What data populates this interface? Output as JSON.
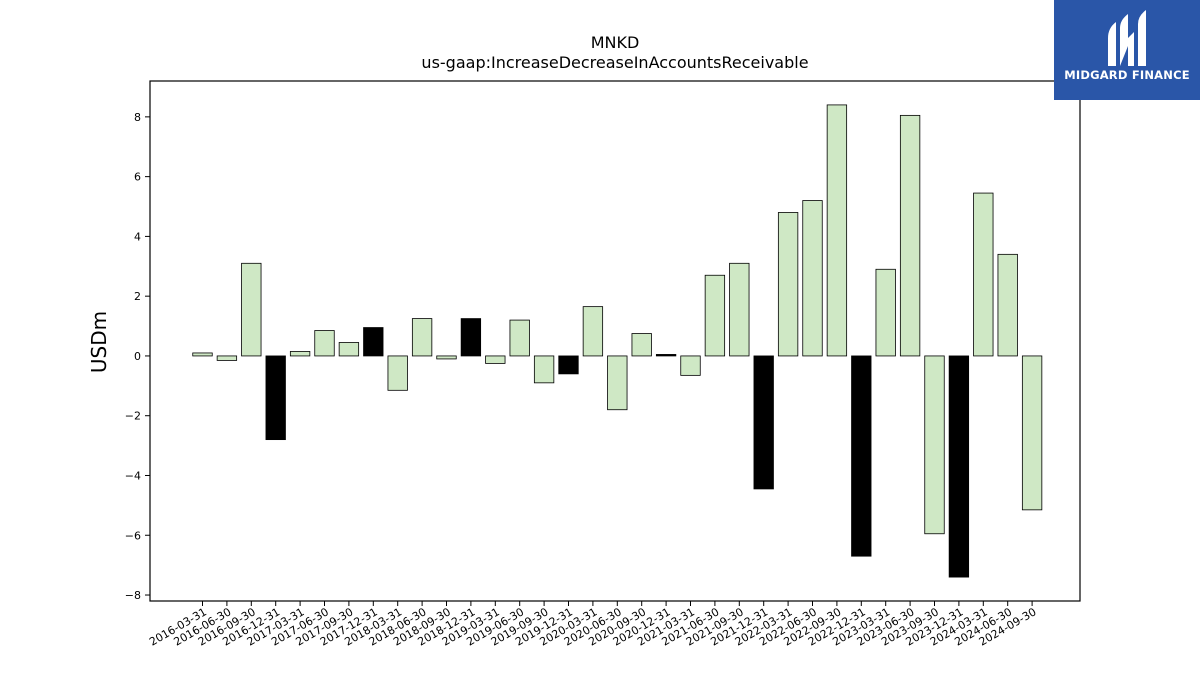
{
  "chart_data": {
    "type": "bar",
    "title": "MNKD",
    "subtitle": "us-gaap:IncreaseDecreaseInAccountsReceivable",
    "xlabel": "",
    "ylabel": "USDm",
    "ylim": [
      -8.2,
      9.2
    ],
    "yticks": [
      -8,
      -6,
      -4,
      -2,
      0,
      2,
      4,
      6,
      8
    ],
    "grid": false,
    "colors": {
      "quarter": "#cfe8c5",
      "annual": "#000000",
      "edge": "#000000"
    },
    "categories": [
      "2016-03-31",
      "2016-06-30",
      "2016-09-30",
      "2016-12-31",
      "2017-03-31",
      "2017-06-30",
      "2017-09-30",
      "2017-12-31",
      "2018-03-31",
      "2018-06-30",
      "2018-09-30",
      "2018-12-31",
      "2019-03-31",
      "2019-06-30",
      "2019-09-30",
      "2019-12-31",
      "2020-03-31",
      "2020-06-30",
      "2020-09-30",
      "2020-12-31",
      "2021-03-31",
      "2021-06-30",
      "2021-09-30",
      "2021-12-31",
      "2022-03-31",
      "2022-06-30",
      "2022-09-30",
      "2022-12-31",
      "2023-03-31",
      "2023-06-30",
      "2023-09-30",
      "2023-12-31",
      "2024-03-31",
      "2024-06-30",
      "2024-09-30"
    ],
    "values": [
      0.1,
      -0.15,
      3.1,
      -2.8,
      0.15,
      0.85,
      0.45,
      0.95,
      -1.15,
      1.25,
      -0.1,
      1.25,
      -0.25,
      1.2,
      -0.9,
      -0.6,
      1.65,
      -1.8,
      0.75,
      0.05,
      -0.65,
      2.7,
      3.1,
      -4.45,
      4.8,
      5.2,
      8.4,
      -6.7,
      2.9,
      8.05,
      -5.95,
      -7.4,
      5.45,
      3.4,
      -5.15
    ],
    "annual": [
      false,
      false,
      false,
      true,
      false,
      false,
      false,
      true,
      false,
      false,
      false,
      true,
      false,
      false,
      false,
      true,
      false,
      false,
      false,
      true,
      false,
      false,
      false,
      true,
      false,
      false,
      false,
      true,
      false,
      false,
      false,
      true,
      false,
      false,
      false
    ]
  },
  "logo": {
    "text": "MIDGARD FINANCE",
    "bg": "#2a56a8"
  }
}
